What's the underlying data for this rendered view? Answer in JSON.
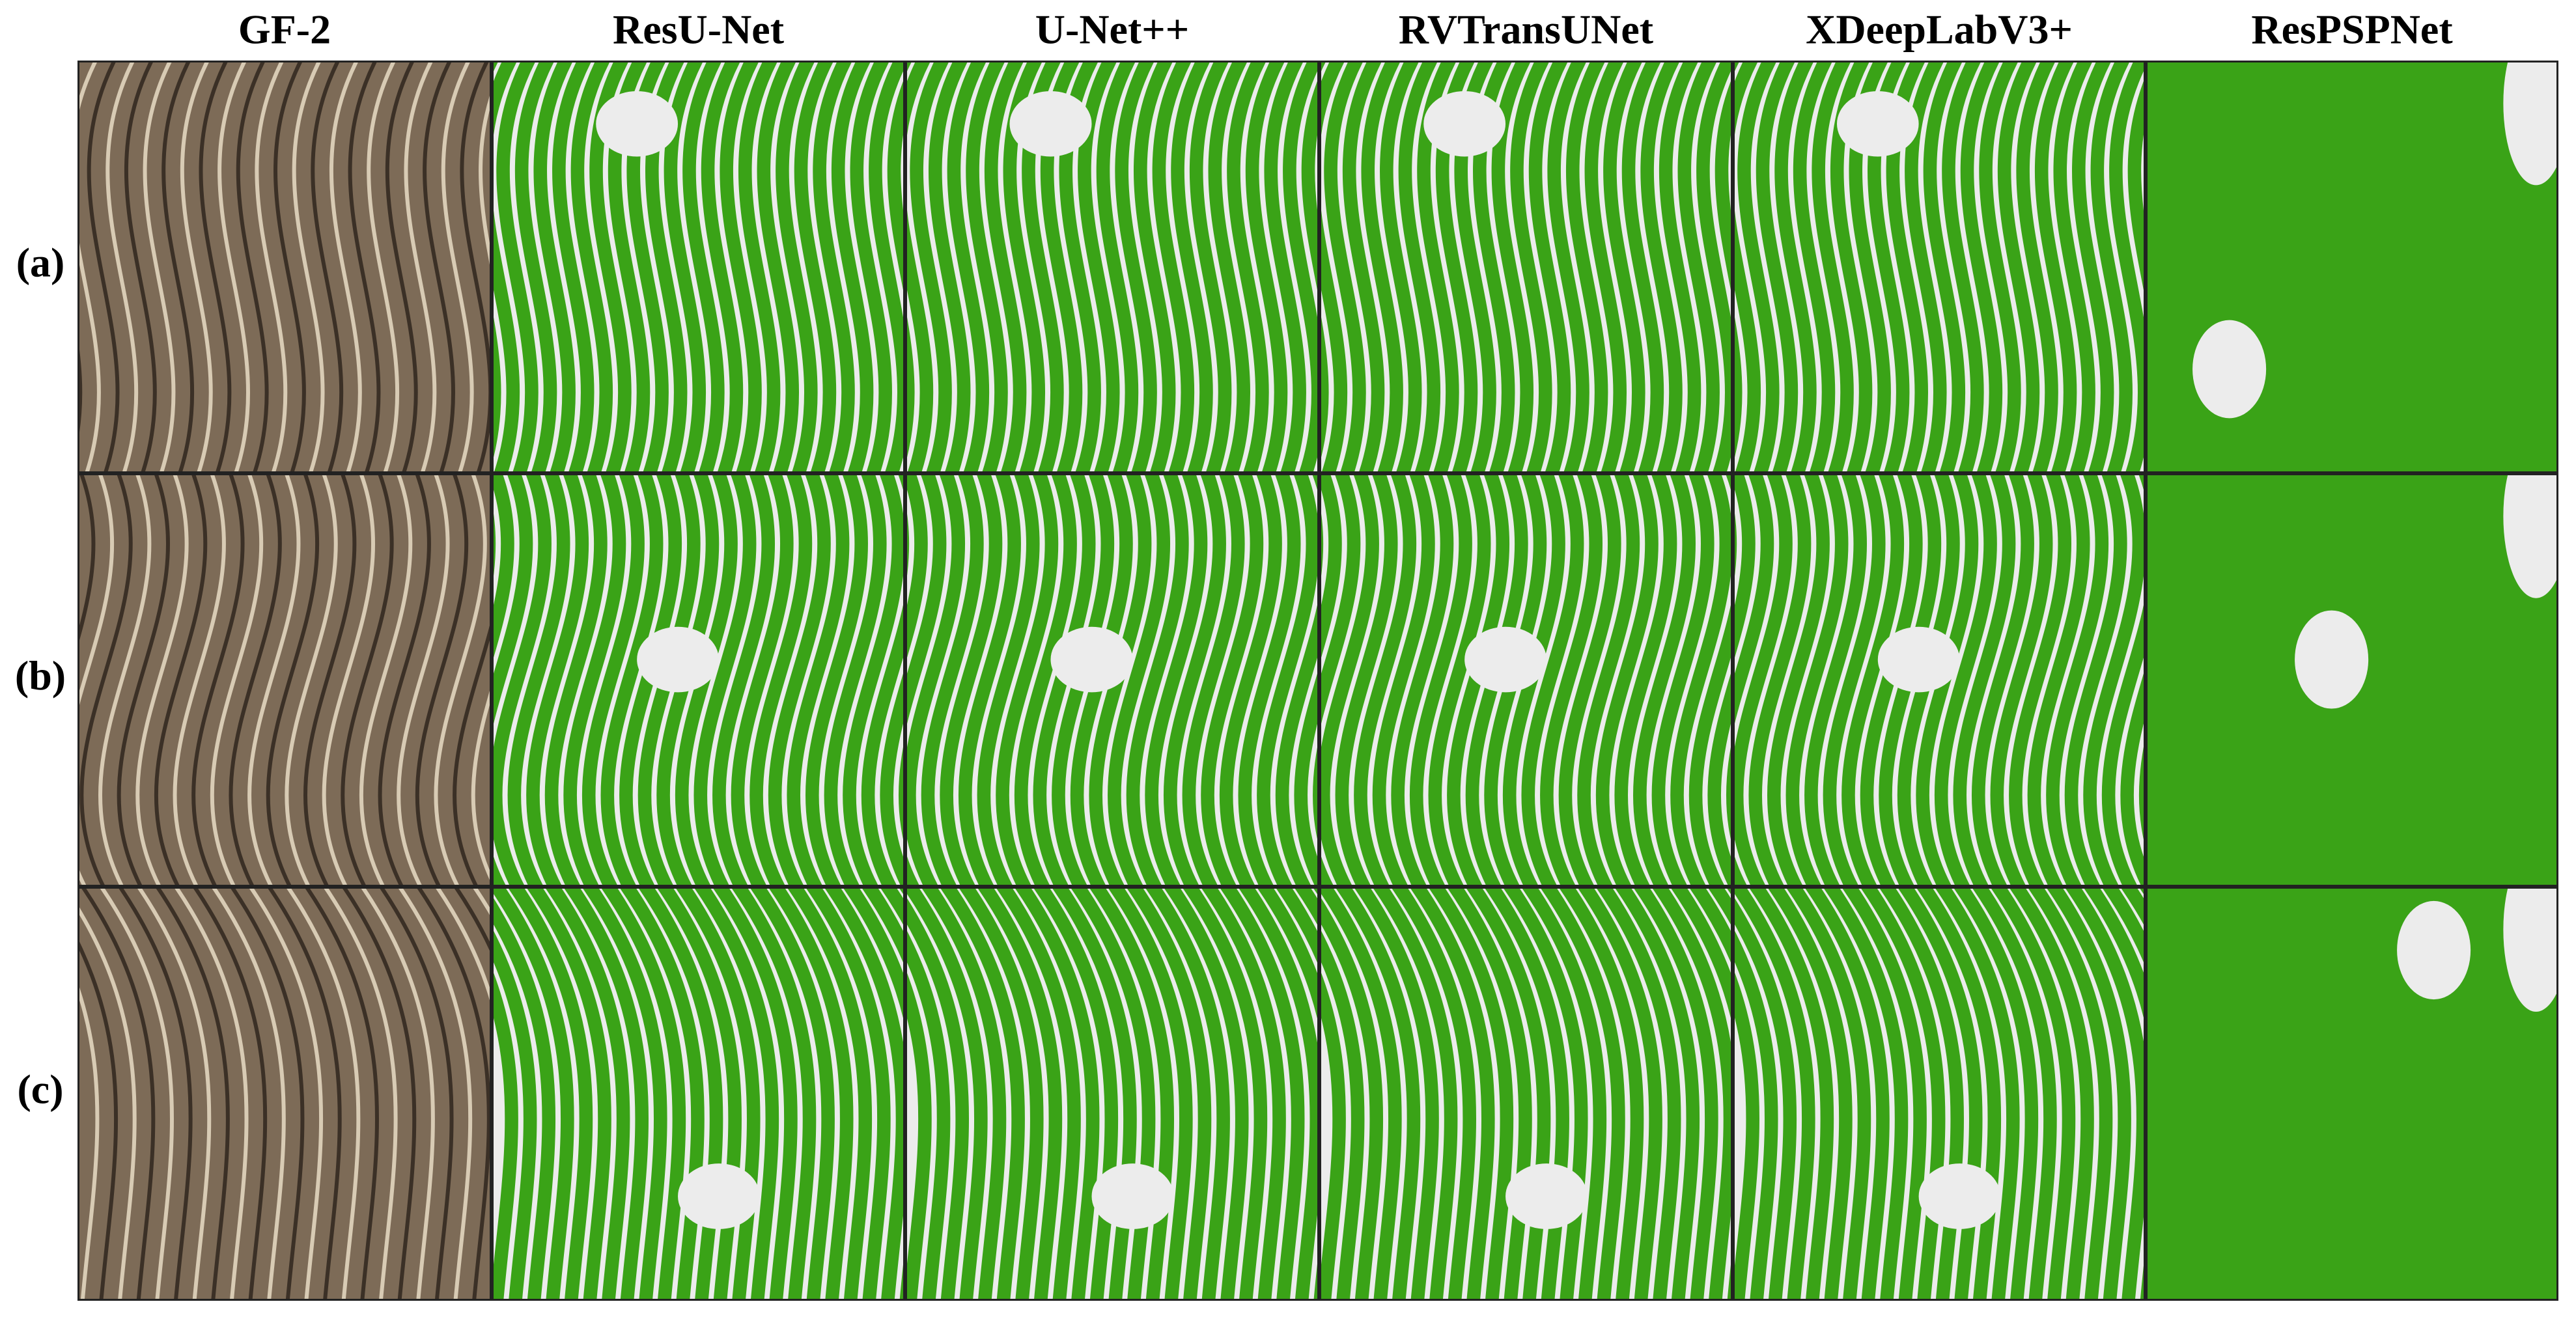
{
  "columns": [
    "GF-2",
    "ResU-Net",
    "U-Net++",
    "RVTransUNet",
    "XDeepLabV3+",
    "ResPSPNet"
  ],
  "rows": [
    "(a)",
    "(b)",
    "(c)"
  ]
}
